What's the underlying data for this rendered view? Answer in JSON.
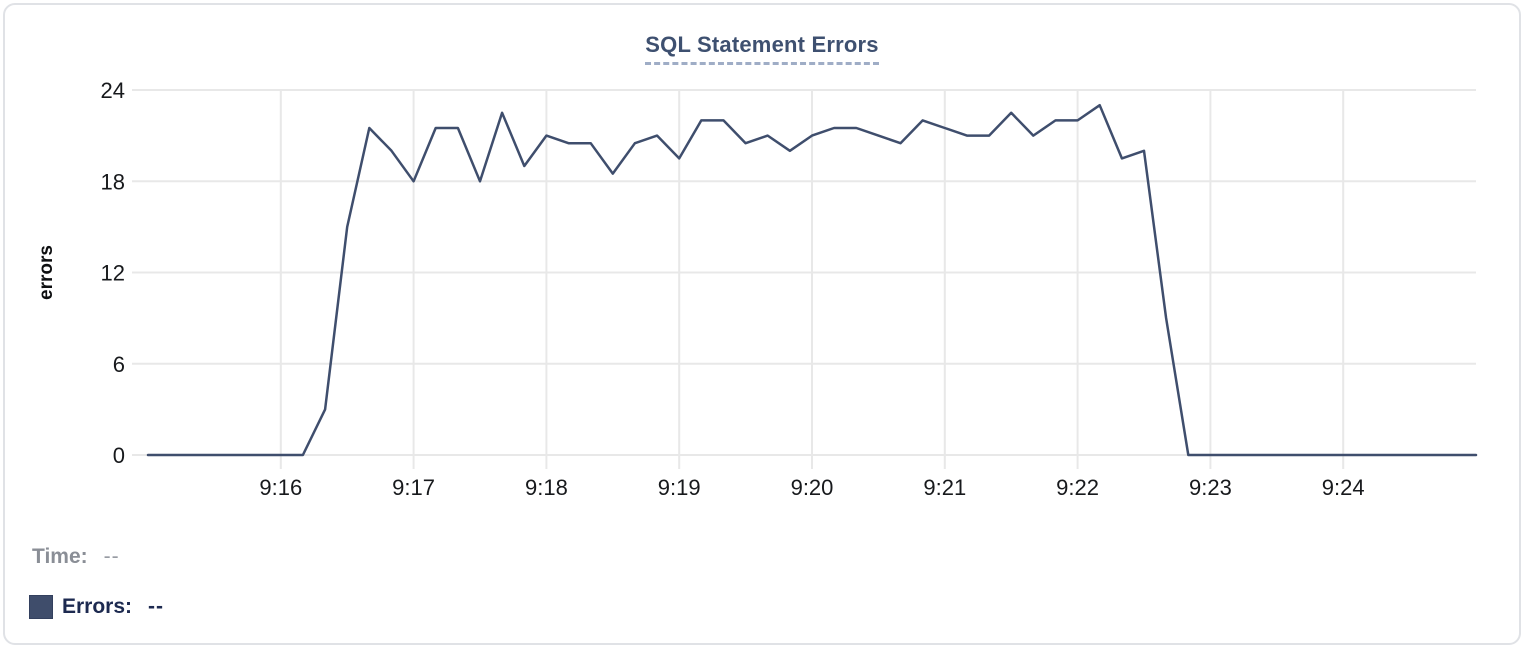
{
  "title": {
    "text": "SQL Statement Errors"
  },
  "chart_data": {
    "type": "line",
    "title": "SQL Statement Errors",
    "xlabel": "",
    "ylabel": "errors",
    "x": [
      "9:15:00",
      "9:15:10",
      "9:15:20",
      "9:15:30",
      "9:15:40",
      "9:15:50",
      "9:16:00",
      "9:16:10",
      "9:16:20",
      "9:16:30",
      "9:16:40",
      "9:16:50",
      "9:17:00",
      "9:17:10",
      "9:17:20",
      "9:17:30",
      "9:17:40",
      "9:17:50",
      "9:18:00",
      "9:18:10",
      "9:18:20",
      "9:18:30",
      "9:18:40",
      "9:18:50",
      "9:19:00",
      "9:19:10",
      "9:19:20",
      "9:19:30",
      "9:19:40",
      "9:19:50",
      "9:20:00",
      "9:20:10",
      "9:20:20",
      "9:20:30",
      "9:20:40",
      "9:20:50",
      "9:21:00",
      "9:21:10",
      "9:21:20",
      "9:21:30",
      "9:21:40",
      "9:21:50",
      "9:22:00",
      "9:22:10",
      "9:22:20",
      "9:22:30",
      "9:22:40",
      "9:22:50",
      "9:23:00",
      "9:23:10",
      "9:23:20",
      "9:23:30",
      "9:23:40",
      "9:23:50",
      "9:24:00",
      "9:24:10",
      "9:24:20",
      "9:24:30",
      "9:24:40",
      "9:24:50",
      "9:25:00"
    ],
    "values": [
      0,
      0,
      0,
      0,
      0,
      0,
      0,
      0,
      3,
      15,
      21.5,
      20,
      18,
      21.5,
      21.5,
      18,
      22.5,
      19,
      21,
      20.5,
      20.5,
      18.5,
      20.5,
      21,
      19.5,
      22,
      22,
      20.5,
      21,
      20,
      21,
      21.5,
      21.5,
      21,
      20.5,
      22,
      21.5,
      21,
      21,
      22.5,
      21,
      22,
      22,
      23,
      19.5,
      20,
      9,
      0,
      0,
      0,
      0,
      0,
      0,
      0,
      0,
      0,
      0,
      0,
      0,
      0,
      0
    ],
    "x_tick_labels": [
      "9:16",
      "9:17",
      "9:18",
      "9:19",
      "9:20",
      "9:21",
      "9:22",
      "9:23",
      "9:24"
    ],
    "y_ticks": [
      0,
      6,
      12,
      18,
      24
    ],
    "ylim": [
      0,
      24
    ],
    "xlim": [
      "9:15:00",
      "9:25:00"
    ],
    "grid": true,
    "legend_position": "bottom-left",
    "line_color": "#3f4e6d"
  },
  "hover_readout": {
    "time_label": "Time:",
    "time_value": "--",
    "errors_label": "Errors:",
    "errors_value": "--",
    "errors_swatch_color": "#3f4d6b"
  },
  "colors": {
    "title": "#3e5070",
    "title_underline": "#9fadc6",
    "axis_text": "#17191c",
    "y_axis_title": "#0d0e10",
    "grid": "#e8e8e8",
    "line": "#3f4e6d",
    "time_text": "#8a8e96",
    "errors_text": "#1d2a50",
    "card_border": "#e0e2e6",
    "background": "#ffffff"
  }
}
